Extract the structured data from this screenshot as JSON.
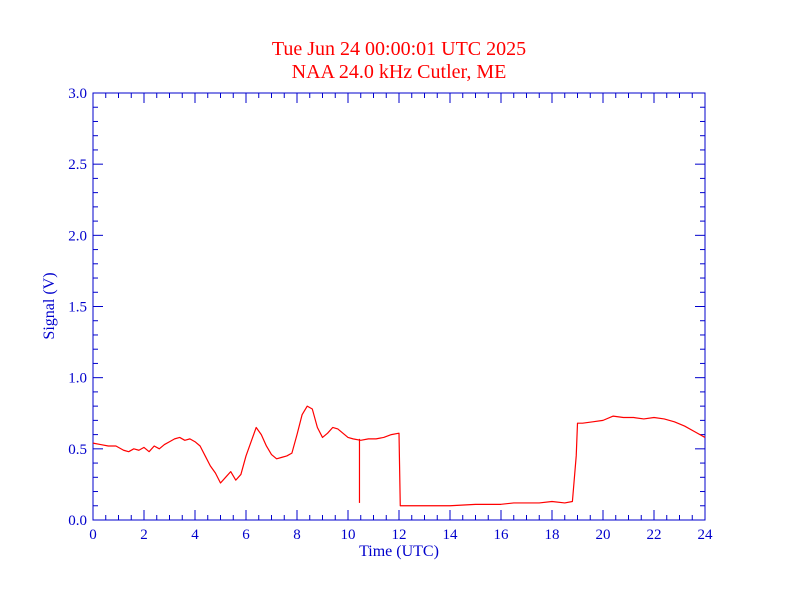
{
  "chart_data": {
    "type": "line",
    "title": "Tue Jun 24 00:00:01 UTC 2025",
    "subtitle": "NAA 24.0 kHz Cutler, ME",
    "xlabel": "Time (UTC)",
    "ylabel": "Signal (V)",
    "xlim": [
      0,
      24
    ],
    "ylim": [
      0.0,
      3.0
    ],
    "x_ticks": [
      "0",
      "2",
      "4",
      "6",
      "8",
      "10",
      "12",
      "14",
      "16",
      "18",
      "20",
      "22",
      "24"
    ],
    "y_ticks": [
      "0.0",
      "0.5",
      "1.0",
      "1.5",
      "2.0",
      "2.5",
      "3.0"
    ],
    "grid": false,
    "colors": {
      "axis": "#0000cc",
      "title": "#ff0000",
      "series": "#ff0000"
    },
    "series": [
      {
        "x": [
          0.0,
          0.3,
          0.6,
          0.9,
          1.2,
          1.4,
          1.6,
          1.8,
          2.0,
          2.2,
          2.4,
          2.6,
          2.8,
          3.0,
          3.2,
          3.4,
          3.6,
          3.8,
          4.0,
          4.2,
          4.4,
          4.6,
          4.8,
          5.0,
          5.2,
          5.4,
          5.6,
          5.8,
          6.0,
          6.2,
          6.4,
          6.6,
          6.8,
          7.0,
          7.2,
          7.4,
          7.6,
          7.8,
          8.0,
          8.2,
          8.4,
          8.6,
          8.8,
          9.0,
          9.2,
          9.4,
          9.6,
          9.8,
          10.0,
          10.2,
          10.5,
          10.8,
          11.1,
          11.4,
          11.7,
          12.0,
          12.05,
          12.3,
          13.0,
          14.0,
          15.0,
          16.0,
          16.5,
          17.0,
          17.5,
          18.0,
          18.5,
          18.8,
          18.95,
          19.0,
          19.2,
          19.6,
          20.0,
          20.4,
          20.8,
          21.2,
          21.6,
          22.0,
          22.4,
          22.8,
          23.2,
          23.6,
          24.0
        ],
        "y": [
          0.54,
          0.53,
          0.52,
          0.52,
          0.49,
          0.48,
          0.5,
          0.49,
          0.51,
          0.48,
          0.52,
          0.5,
          0.53,
          0.55,
          0.57,
          0.58,
          0.56,
          0.57,
          0.55,
          0.52,
          0.45,
          0.38,
          0.33,
          0.26,
          0.3,
          0.34,
          0.28,
          0.32,
          0.45,
          0.55,
          0.65,
          0.6,
          0.52,
          0.46,
          0.43,
          0.44,
          0.45,
          0.47,
          0.6,
          0.74,
          0.8,
          0.78,
          0.65,
          0.58,
          0.61,
          0.65,
          0.64,
          0.61,
          0.58,
          0.57,
          0.56,
          0.57,
          0.57,
          0.58,
          0.6,
          0.61,
          0.1,
          0.1,
          0.1,
          0.1,
          0.11,
          0.11,
          0.12,
          0.12,
          0.12,
          0.13,
          0.12,
          0.13,
          0.45,
          0.68,
          0.68,
          0.69,
          0.7,
          0.73,
          0.72,
          0.72,
          0.71,
          0.72,
          0.71,
          0.69,
          0.66,
          0.62,
          0.58
        ]
      }
    ],
    "spikes": [
      {
        "x": 10.45,
        "from": 0.57,
        "to": 0.12
      }
    ]
  }
}
